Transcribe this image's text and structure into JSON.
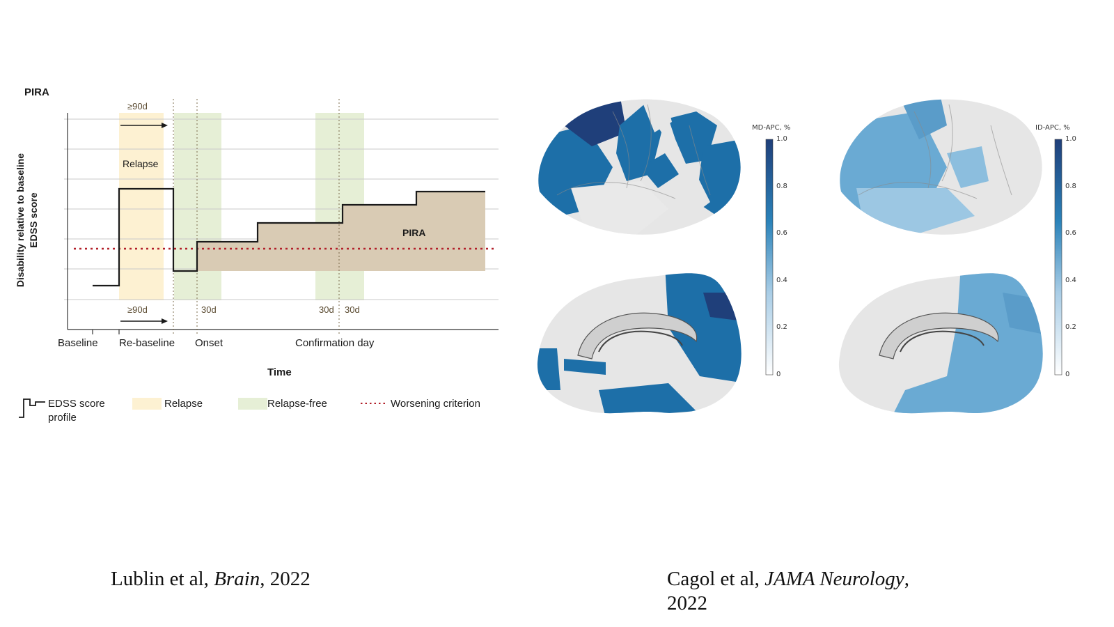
{
  "pira_diagram": {
    "title": "PIRA",
    "y_axis_label_line1": "Disability relative to baseline",
    "y_axis_label_line2": "EDSS score",
    "x_axis_label": "Time",
    "time_labels": [
      "Baseline",
      "Re-baseline",
      "Onset",
      "Confirmation day"
    ],
    "interval_top": "≥90d",
    "interval_bottom": "≥90d",
    "interval_30d_a": "30d",
    "interval_30d_b": "30d",
    "interval_30d_c": "30d",
    "relapse_label": "Relapse",
    "pira_label": "PIRA",
    "legend": {
      "edss_line1": "EDSS score",
      "edss_line2": "profile",
      "relapse": "Relapse",
      "relapse_free": "Relapse-free",
      "worsening": "Worsening criterion"
    },
    "colors": {
      "relapse": "#fdf1d2",
      "relapse_free": "#e6efd6",
      "pira_fill": "#d9cbb4",
      "worsening": "#b2202a",
      "profile": "#1a1a1a"
    }
  },
  "brain_maps": {
    "left_title": "MD-APC, %",
    "right_title": "ID-APC, %",
    "scale_ticks": [
      "1.0",
      "0.8",
      "0.6",
      "0.4",
      "0.2",
      "0"
    ],
    "colors": {
      "dark": "#1f3f7a",
      "mid": "#1d6fa8",
      "light": "#6aaad3",
      "gray": "#e6e6e6"
    }
  },
  "citations": {
    "left_author": "Lublin et al, ",
    "left_journal": "Brain",
    "left_year": ", 2022",
    "right_author": "Cagol et al, ",
    "right_journal": "JAMA Neurology",
    "right_tail": ",",
    "right_year": "2022"
  }
}
